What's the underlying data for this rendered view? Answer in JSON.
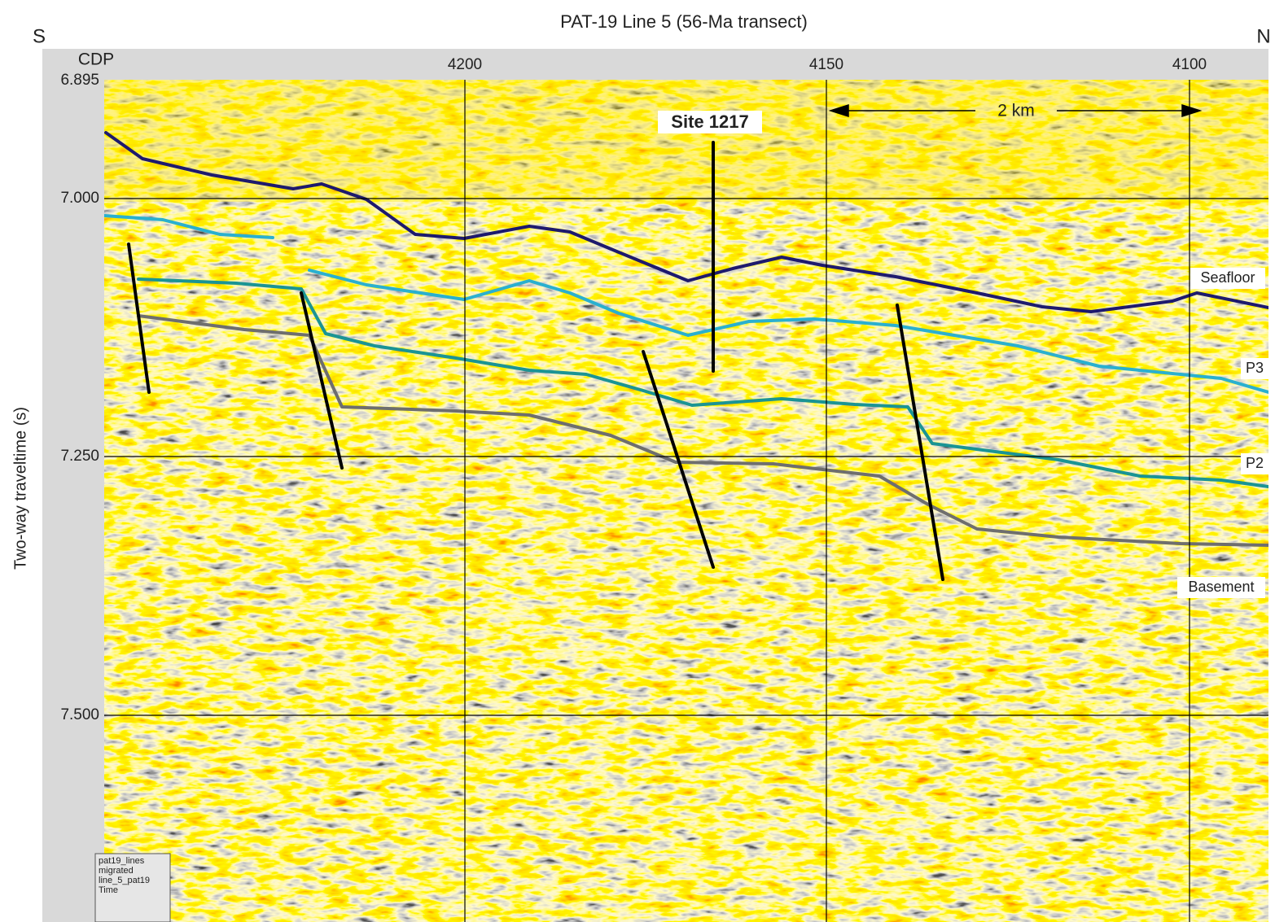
{
  "title": "PAT-19 Line 5 (56-Ma transect)",
  "direction": {
    "left": "S",
    "right": "N"
  },
  "x_axis": {
    "label": "CDP",
    "ticks": [
      "4200",
      "4150",
      "4100"
    ]
  },
  "y_axis": {
    "label": "Two-way traveltime (s)",
    "ticks": [
      "6.895",
      "7.000",
      "7.250",
      "7.500"
    ]
  },
  "annotations": {
    "site": "Site 1217",
    "scale": "2 km",
    "horizons": [
      "Seafloor",
      "P3",
      "P2",
      "Basement"
    ],
    "info_box": [
      "pat19_lines",
      "migrated",
      "line_5_pat19",
      "Time"
    ]
  }
}
